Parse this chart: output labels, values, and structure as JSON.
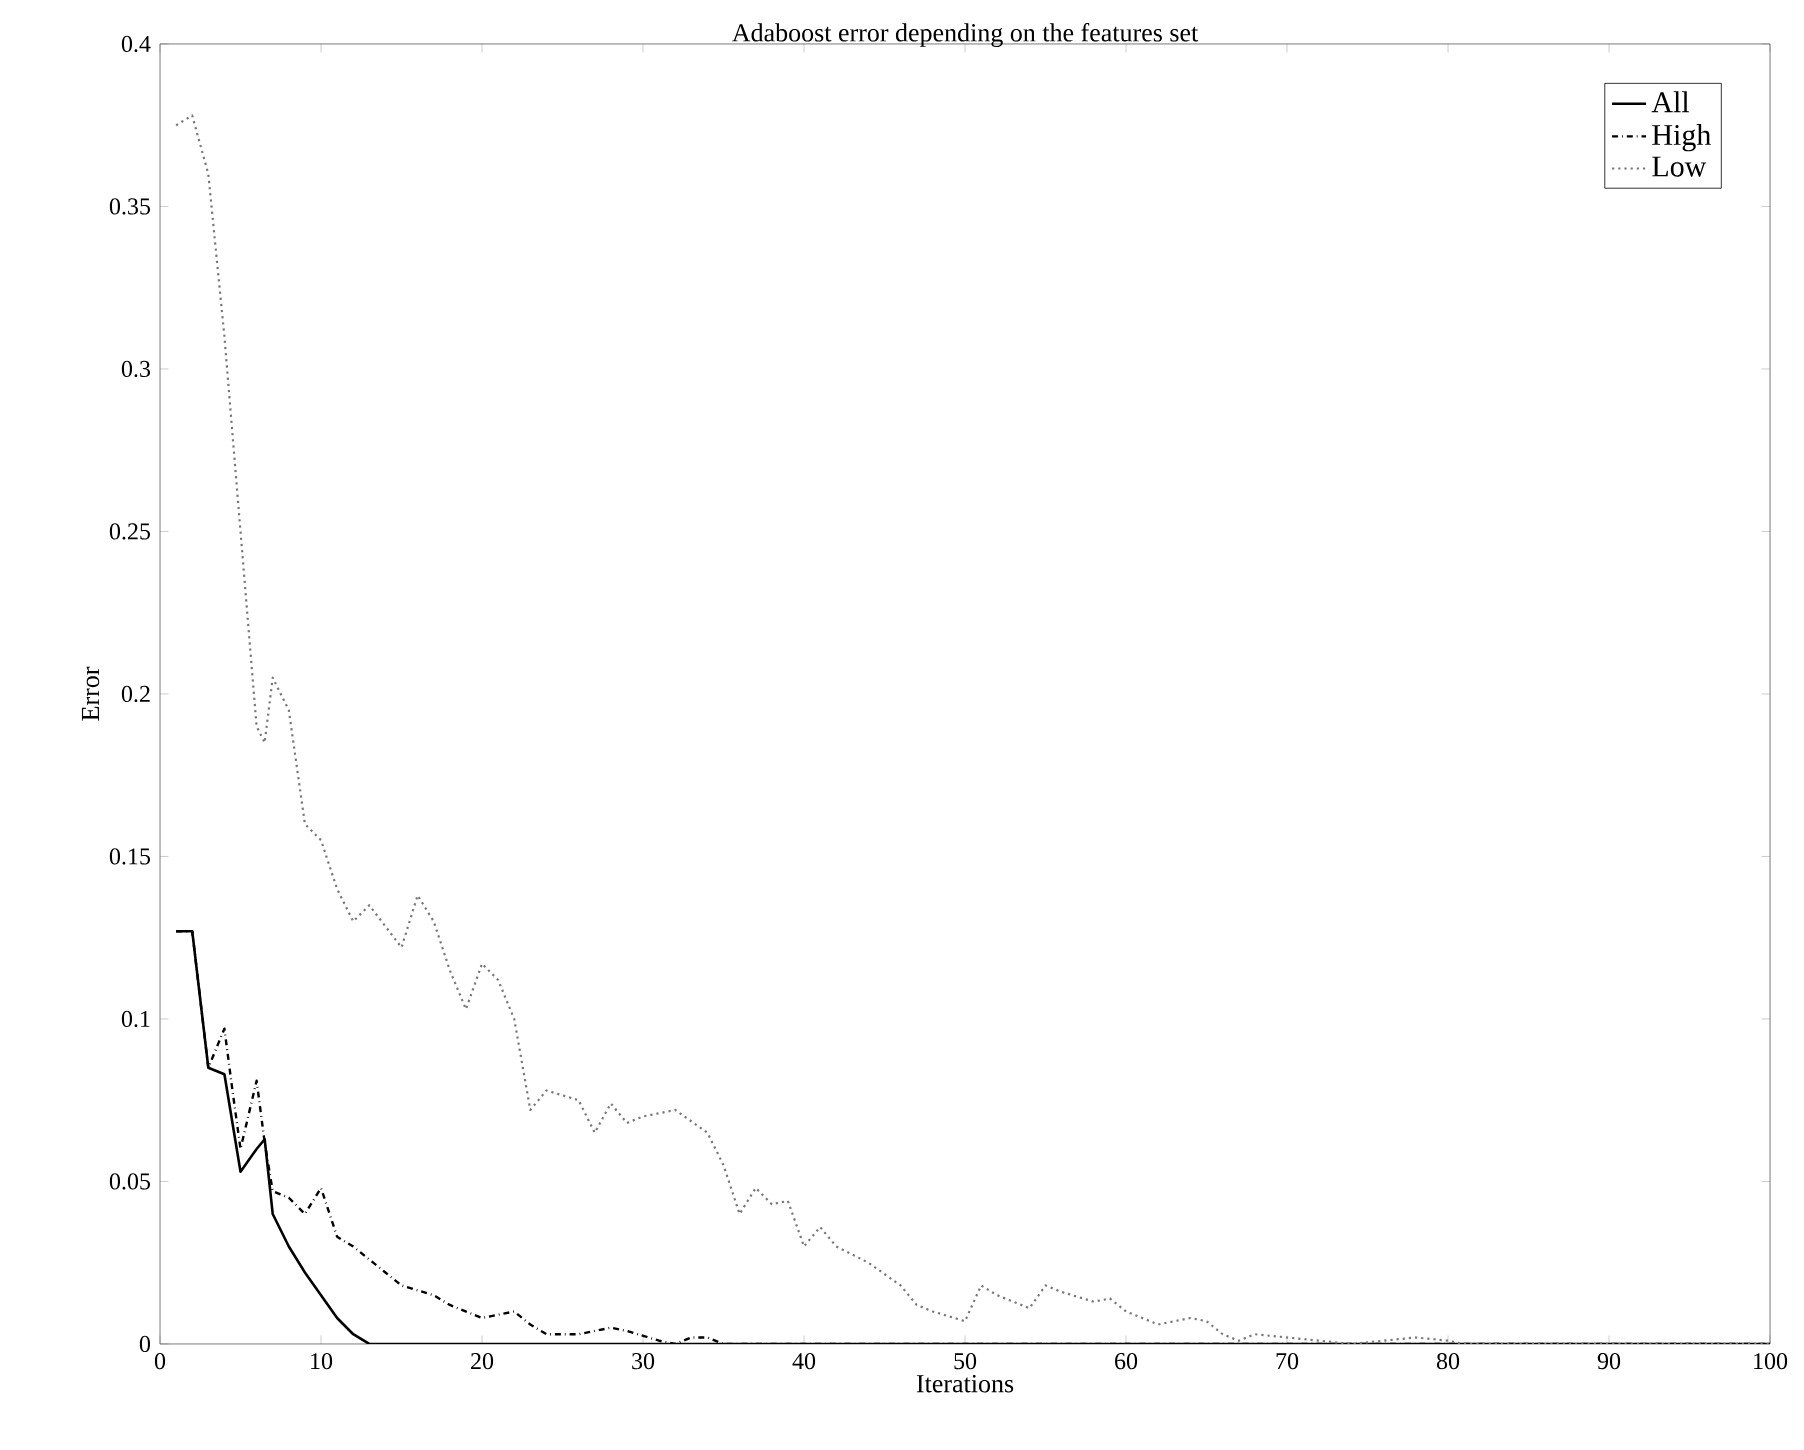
{
  "chart_data": {
    "type": "line",
    "title": "Adaboost error depending on the features set",
    "xlabel": "Iterations",
    "ylabel": "Error",
    "xlim": [
      0,
      100
    ],
    "ylim": [
      0,
      0.4
    ],
    "xticks": [
      0,
      10,
      20,
      30,
      40,
      50,
      60,
      70,
      80,
      90,
      100
    ],
    "yticks": [
      0,
      0.05,
      0.1,
      0.15,
      0.2,
      0.25,
      0.3,
      0.35,
      0.4
    ],
    "grid": false,
    "legend": "top right",
    "marker": "none",
    "series": [
      {
        "name": "All",
        "color": "#000000",
        "line_style": "solid",
        "x": [
          1,
          2,
          3,
          4,
          5,
          6,
          6.5,
          7,
          8,
          9,
          10,
          11,
          12,
          13,
          100
        ],
        "values": [
          0.127,
          0.127,
          0.085,
          0.083,
          0.053,
          0.06,
          0.063,
          0.04,
          0.03,
          0.022,
          0.015,
          0.008,
          0.003,
          0,
          0
        ]
      },
      {
        "name": "High",
        "color": "#000000",
        "line_style": "dashdot",
        "x": [
          1,
          2,
          3,
          4,
          4.5,
          5,
          6,
          6.5,
          7,
          8,
          9,
          10,
          11,
          12,
          14,
          15,
          17,
          18,
          19,
          20,
          22,
          23,
          24,
          26,
          28,
          29,
          31,
          32,
          33,
          34,
          35,
          100
        ],
        "values": [
          0.127,
          0.127,
          0.085,
          0.097,
          0.078,
          0.06,
          0.081,
          0.062,
          0.047,
          0.045,
          0.04,
          0.048,
          0.033,
          0.03,
          0.022,
          0.018,
          0.015,
          0.012,
          0.01,
          0.008,
          0.01,
          0.006,
          0.003,
          0.003,
          0.005,
          0.004,
          0.001,
          0,
          0.002,
          0.002,
          0,
          0
        ]
      },
      {
        "name": "Low",
        "color": "#777777",
        "line_style": "dotted",
        "x": [
          1,
          2,
          3,
          4,
          5,
          6,
          6.5,
          7,
          8,
          9,
          10,
          11,
          12,
          13,
          15,
          16,
          17,
          18,
          19,
          20,
          21,
          22,
          23,
          24,
          26,
          27,
          28,
          29,
          30,
          32,
          34,
          35,
          36,
          37,
          38,
          39,
          40,
          41,
          42,
          44,
          46,
          47,
          48,
          50,
          51,
          52,
          54,
          55,
          56,
          58,
          59,
          60,
          62,
          64,
          65,
          66,
          67,
          68,
          70,
          72,
          74,
          76,
          78,
          80,
          81,
          100
        ],
        "values": [
          0.375,
          0.378,
          0.36,
          0.31,
          0.25,
          0.19,
          0.185,
          0.205,
          0.195,
          0.16,
          0.155,
          0.14,
          0.13,
          0.135,
          0.122,
          0.138,
          0.13,
          0.115,
          0.103,
          0.117,
          0.112,
          0.1,
          0.072,
          0.078,
          0.075,
          0.065,
          0.074,
          0.068,
          0.07,
          0.072,
          0.065,
          0.055,
          0.04,
          0.048,
          0.043,
          0.044,
          0.03,
          0.036,
          0.03,
          0.025,
          0.018,
          0.012,
          0.01,
          0.007,
          0.018,
          0.015,
          0.011,
          0.018,
          0.016,
          0.013,
          0.014,
          0.01,
          0.006,
          0.008,
          0.007,
          0.003,
          0.001,
          0.003,
          0.002,
          0.001,
          0,
          0.001,
          0.002,
          0.001,
          0,
          0
        ]
      }
    ]
  }
}
